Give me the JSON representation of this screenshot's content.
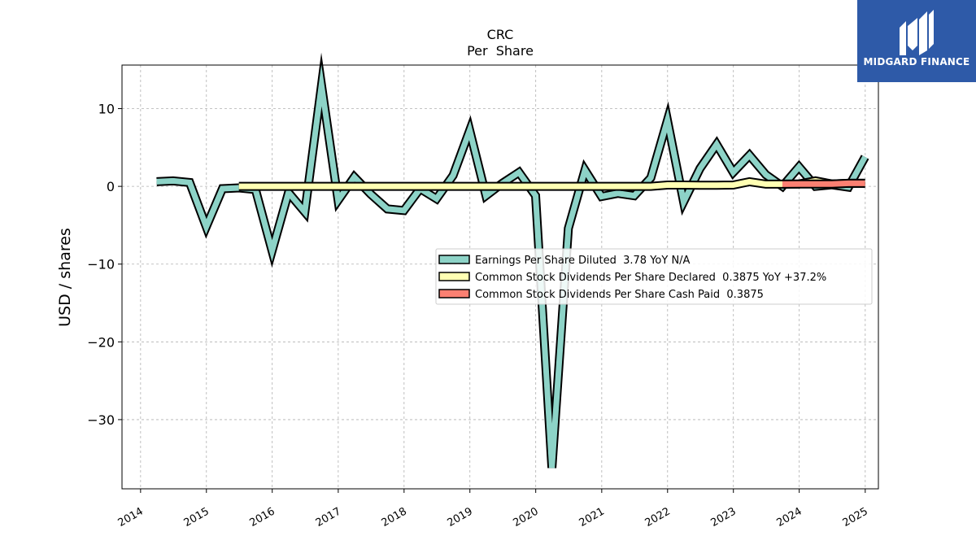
{
  "chart_data": {
    "type": "line",
    "title": "CRC",
    "subtitle": "Per  Share",
    "ylabel": "USD / shares",
    "xlabel": "",
    "x_ticks": [
      "2014",
      "2015",
      "2016",
      "2017",
      "2018",
      "2019",
      "2020",
      "2021",
      "2022",
      "2023",
      "2024",
      "2025"
    ],
    "y_ticks": [
      10,
      0,
      -10,
      -20,
      -30
    ],
    "y_tick_labels": [
      "10",
      "0",
      "−10",
      "−20",
      "−30"
    ],
    "xlim": [
      "2013-09-20",
      "2025-03-15"
    ],
    "ylim": [
      -38.9,
      15.6
    ],
    "grid": true,
    "legend_position": "center-right",
    "series": [
      {
        "name": "Earnings Per Share Diluted",
        "legend_label": "Earnings Per Share Diluted  3.78 YoY N/A",
        "color": "#8dd3c7",
        "x": [
          "2014-03-31",
          "2014-06-30",
          "2014-09-30",
          "2014-12-31",
          "2015-03-31",
          "2015-06-30",
          "2015-09-30",
          "2015-12-31",
          "2016-03-31",
          "2016-06-30",
          "2016-09-30",
          "2016-12-31",
          "2017-03-31",
          "2017-06-30",
          "2017-09-30",
          "2017-12-31",
          "2018-03-31",
          "2018-06-30",
          "2018-09-30",
          "2018-12-31",
          "2019-03-31",
          "2019-06-30",
          "2019-09-30",
          "2019-12-31",
          "2020-03-31",
          "2020-06-30",
          "2020-09-30",
          "2020-12-31",
          "2021-03-31",
          "2021-06-30",
          "2021-09-30",
          "2021-12-31",
          "2022-03-31",
          "2022-06-30",
          "2022-09-30",
          "2022-12-31",
          "2023-03-31",
          "2023-06-30",
          "2023-09-30",
          "2023-12-31",
          "2024-03-31",
          "2024-06-30",
          "2024-09-30",
          "2024-12-31"
        ],
        "values": [
          0.6,
          0.7,
          0.5,
          -5.2,
          -0.3,
          -0.2,
          -0.4,
          -8.3,
          -0.8,
          -3.3,
          13.0,
          -1.8,
          1.2,
          -1.0,
          -2.9,
          -3.1,
          -0.3,
          -1.6,
          1.4,
          7.2,
          -1.2,
          0.4,
          1.8,
          -1.2,
          -36.2,
          -5.4,
          2.1,
          -1.3,
          -0.9,
          -1.2,
          1.1,
          8.5,
          -2.0,
          2.3,
          5.4,
          1.8,
          4.0,
          1.5,
          0.0,
          2.5,
          0.0,
          0.2,
          -0.1,
          3.78
        ]
      },
      {
        "name": "Common Stock Dividends Per Share Declared",
        "legend_label": "Common Stock Dividends Per Share Declared  0.3875 YoY +37.2%",
        "color": "#ffffb3",
        "x": [
          "2015-06-30",
          "2015-09-30",
          "2015-12-31",
          "2016-03-31",
          "2016-06-30",
          "2016-09-30",
          "2016-12-31",
          "2017-03-31",
          "2017-06-30",
          "2017-09-30",
          "2017-12-31",
          "2018-03-31",
          "2018-06-30",
          "2018-09-30",
          "2018-12-31",
          "2019-03-31",
          "2019-06-30",
          "2019-09-30",
          "2019-12-31",
          "2020-03-31",
          "2020-06-30",
          "2020-09-30",
          "2020-12-31",
          "2021-03-31",
          "2021-06-30",
          "2021-09-30",
          "2021-12-31",
          "2022-03-31",
          "2022-06-30",
          "2022-09-30",
          "2022-12-31",
          "2023-03-31",
          "2023-06-30",
          "2023-09-30",
          "2023-12-31",
          "2024-03-31",
          "2024-06-30",
          "2024-09-30",
          "2024-12-31"
        ],
        "values": [
          0,
          0,
          0,
          0,
          0,
          0,
          0,
          0,
          0,
          0,
          0,
          0,
          0,
          0,
          0,
          0,
          0,
          0,
          0,
          0,
          0,
          0,
          0,
          0,
          0,
          0,
          0.17,
          0.17,
          0.14,
          0.14,
          0.17,
          0.595,
          0.2825,
          0.2825,
          0.31,
          0.7,
          0.31,
          0.3875,
          0.3875
        ]
      },
      {
        "name": "Common Stock Dividends Per Share Cash Paid",
        "legend_label": "Common Stock Dividends Per Share Cash Paid  0.3875",
        "color": "#fb8072",
        "x": [
          "2023-09-30",
          "2023-12-31",
          "2024-03-31",
          "2024-06-30",
          "2024-09-30",
          "2024-12-31"
        ],
        "values": [
          0.2825,
          0.31,
          0.31,
          0.31,
          0.3875,
          0.3875
        ]
      }
    ]
  },
  "logo": {
    "text": "MIDGARD FINANCE",
    "background": "#2e5aa8",
    "icon": "midgard-logo-icon"
  }
}
